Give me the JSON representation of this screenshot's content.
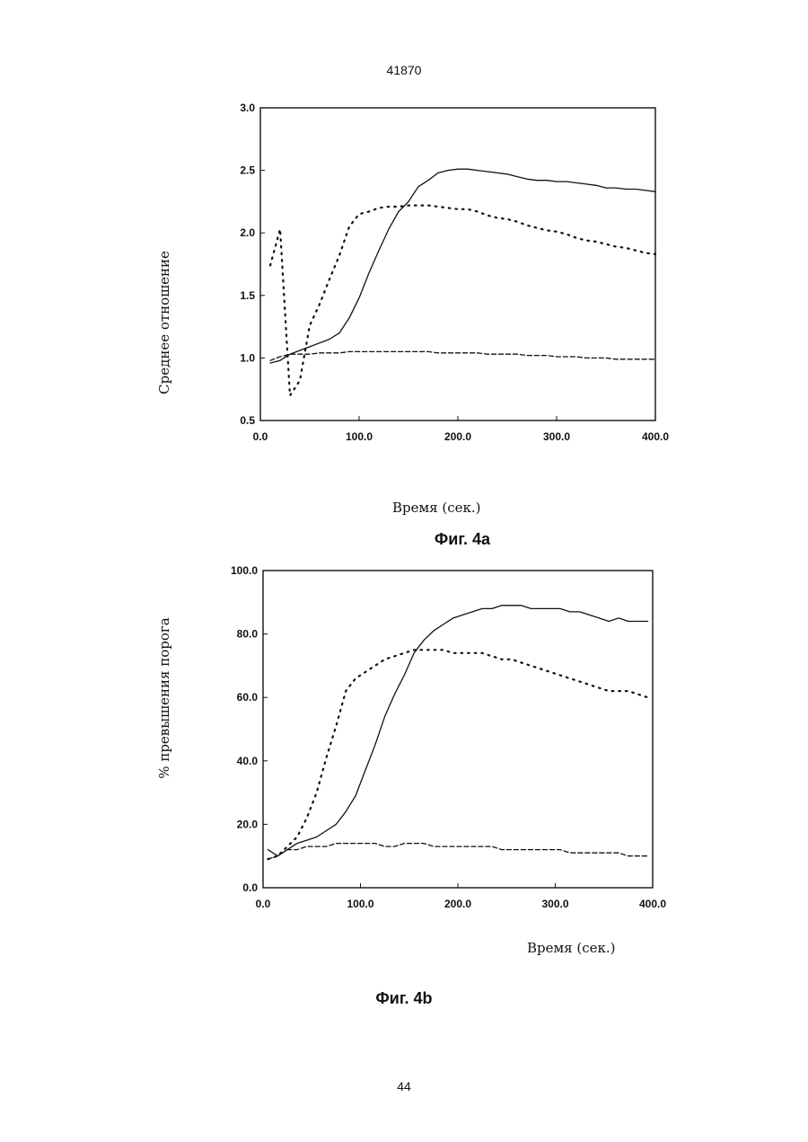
{
  "page": {
    "header_number": "41870",
    "footer_number": "44"
  },
  "chart_data": [
    {
      "type": "line",
      "caption": "Фиг. 4a",
      "xlabel": "Время (сек.)",
      "ylabel": "Среднее отношение",
      "xlim": [
        0,
        400
      ],
      "ylim": [
        0.5,
        3.0
      ],
      "xticks": [
        "0.0",
        "100.0",
        "200.0",
        "300.0",
        "400.0"
      ],
      "yticks": [
        "0.5",
        "1.0",
        "1.5",
        "2.0",
        "2.5",
        "3.0"
      ],
      "x": [
        10,
        20,
        30,
        40,
        50,
        60,
        70,
        80,
        90,
        100,
        110,
        120,
        130,
        140,
        150,
        160,
        170,
        180,
        190,
        200,
        210,
        220,
        230,
        240,
        250,
        260,
        270,
        280,
        290,
        300,
        310,
        320,
        330,
        340,
        350,
        360,
        370,
        380,
        390,
        400
      ],
      "series": [
        {
          "style": "solid",
          "values": [
            0.96,
            0.98,
            1.03,
            1.06,
            1.09,
            1.12,
            1.15,
            1.2,
            1.32,
            1.48,
            1.68,
            1.86,
            2.03,
            2.17,
            2.25,
            2.37,
            2.42,
            2.48,
            2.5,
            2.51,
            2.51,
            2.5,
            2.49,
            2.48,
            2.47,
            2.45,
            2.43,
            2.42,
            2.42,
            2.41,
            2.41,
            2.4,
            2.39,
            2.38,
            2.36,
            2.36,
            2.35,
            2.35,
            2.34,
            2.33
          ]
        },
        {
          "style": "dotted",
          "values": [
            1.74,
            2.03,
            0.7,
            0.82,
            1.26,
            1.43,
            1.63,
            1.82,
            2.05,
            2.15,
            2.17,
            2.2,
            2.21,
            2.21,
            2.22,
            2.22,
            2.22,
            2.21,
            2.2,
            2.19,
            2.19,
            2.17,
            2.14,
            2.12,
            2.11,
            2.09,
            2.06,
            2.04,
            2.02,
            2.01,
            1.99,
            1.96,
            1.94,
            1.93,
            1.91,
            1.89,
            1.88,
            1.86,
            1.84,
            1.83
          ]
        },
        {
          "style": "dashed",
          "values": [
            0.98,
            1.01,
            1.03,
            1.03,
            1.03,
            1.04,
            1.04,
            1.04,
            1.05,
            1.05,
            1.05,
            1.05,
            1.05,
            1.05,
            1.05,
            1.05,
            1.05,
            1.04,
            1.04,
            1.04,
            1.04,
            1.04,
            1.03,
            1.03,
            1.03,
            1.03,
            1.02,
            1.02,
            1.02,
            1.01,
            1.01,
            1.01,
            1.0,
            1.0,
            1.0,
            0.99,
            0.99,
            0.99,
            0.99,
            0.99
          ]
        }
      ]
    },
    {
      "type": "line",
      "caption": "Фиг. 4b",
      "xlabel": "Время (сек.)",
      "ylabel": "% превышения порога",
      "xlim": [
        0,
        400
      ],
      "ylim": [
        0,
        100
      ],
      "xticks": [
        "0.0",
        "100.0",
        "200.0",
        "300.0",
        "400.0"
      ],
      "yticks": [
        "0.0",
        "20.0",
        "40.0",
        "60.0",
        "80.0",
        "100.0"
      ],
      "x": [
        5,
        15,
        25,
        35,
        45,
        55,
        65,
        75,
        85,
        95,
        105,
        115,
        125,
        135,
        145,
        155,
        165,
        175,
        185,
        195,
        205,
        215,
        225,
        235,
        245,
        255,
        265,
        275,
        285,
        295,
        305,
        315,
        325,
        335,
        345,
        355,
        365,
        375,
        385,
        395
      ],
      "series": [
        {
          "style": "solid",
          "values": [
            12,
            10,
            12,
            14,
            15,
            16,
            18,
            20,
            24,
            29,
            37,
            45,
            54,
            61,
            67,
            74,
            78,
            81,
            83,
            85,
            86,
            87,
            88,
            88,
            89,
            89,
            89,
            88,
            88,
            88,
            88,
            87,
            87,
            86,
            85,
            84,
            85,
            84,
            84,
            84
          ]
        },
        {
          "style": "dotted",
          "values": [
            9,
            10,
            13,
            16,
            22,
            30,
            41,
            51,
            62,
            66,
            68,
            70,
            72,
            73,
            74,
            75,
            75,
            75,
            75,
            74,
            74,
            74,
            74,
            73,
            72,
            72,
            71,
            70,
            69,
            68,
            67,
            66,
            65,
            64,
            63,
            62,
            62,
            62,
            61,
            60
          ]
        },
        {
          "style": "dashed",
          "values": [
            9,
            10,
            12,
            12,
            13,
            13,
            13,
            14,
            14,
            14,
            14,
            14,
            13,
            13,
            14,
            14,
            14,
            13,
            13,
            13,
            13,
            13,
            13,
            13,
            12,
            12,
            12,
            12,
            12,
            12,
            12,
            11,
            11,
            11,
            11,
            11,
            11,
            10,
            10,
            10
          ]
        }
      ]
    }
  ]
}
